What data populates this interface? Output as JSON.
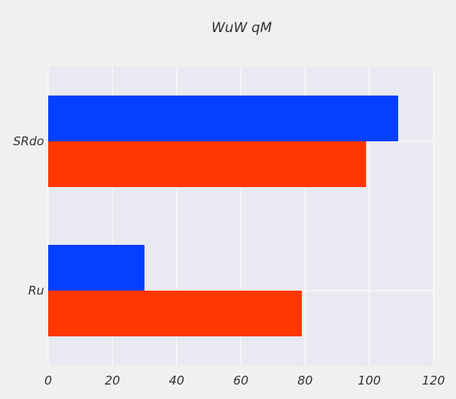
{
  "chart_data": {
    "type": "bar",
    "orientation": "horizontal",
    "title": "WuW qM",
    "xlabel": "",
    "ylabel": "",
    "categories": [
      "Ru",
      "SRdo"
    ],
    "series": [
      {
        "values": [
          30,
          109
        ],
        "color": "#0340ff"
      },
      {
        "values": [
          79,
          99
        ],
        "color": "#ff3700"
      }
    ],
    "xlim": [
      0,
      120
    ],
    "xticks": [
      0,
      20,
      40,
      60,
      80,
      100,
      120
    ],
    "grid": true,
    "colors": {
      "background": "#f0f0f0",
      "plot_area": "#e9e9f1",
      "grid": "#ffffff",
      "text": "#333333"
    }
  }
}
